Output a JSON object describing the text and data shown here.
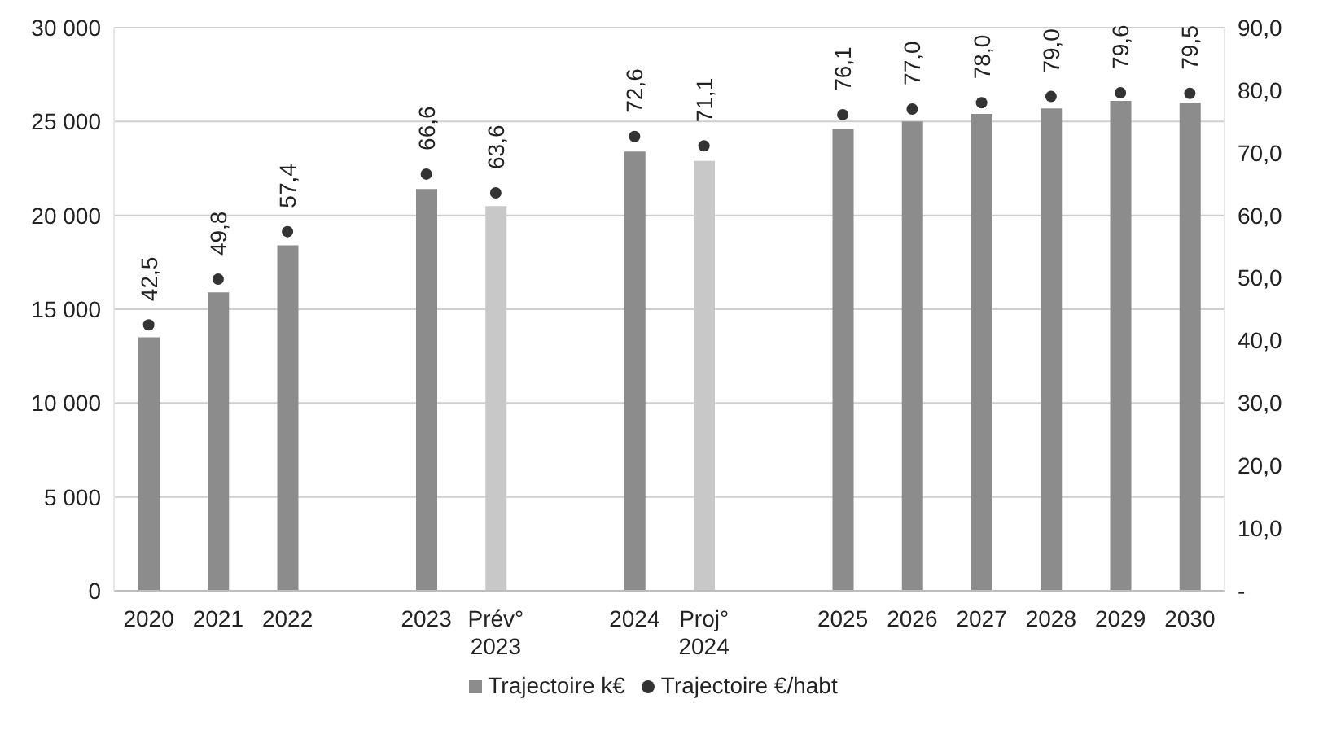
{
  "chart_data": {
    "type": "bar",
    "categories": [
      "2020",
      "2021",
      "2022",
      null,
      "2023",
      "Prév° 2023",
      null,
      "2024",
      "Proj° 2024",
      null,
      "2025",
      "2026",
      "2027",
      "2028",
      "2029",
      "2030"
    ],
    "series": [
      {
        "name": "Trajectoire k€",
        "color": "#8c8c8c",
        "colors": [
          "#8c8c8c",
          "#8c8c8c",
          "#8c8c8c",
          "#8c8c8c",
          "#8c8c8c",
          "#c8c8c8",
          "#8c8c8c",
          "#8c8c8c",
          "#c8c8c8",
          "#8c8c8c",
          "#8c8c8c",
          "#8c8c8c",
          "#8c8c8c",
          "#8c8c8c",
          "#8c8c8c",
          "#8c8c8c"
        ],
        "values": [
          13500,
          15900,
          18400,
          null,
          21400,
          20500,
          null,
          23400,
          22900,
          null,
          24600,
          25000,
          25400,
          25700,
          26100,
          26000
        ]
      },
      {
        "name": "Trajectoire €/habt",
        "type": "scatter",
        "axis": "y2",
        "color": "#333333",
        "values": [
          42.5,
          49.8,
          57.4,
          null,
          66.6,
          63.6,
          null,
          72.6,
          71.1,
          null,
          76.1,
          77.0,
          78.0,
          79.0,
          79.6,
          79.5
        ],
        "value_labels": [
          "42,5",
          "49,8",
          "57,4",
          null,
          "66,6",
          "63,6",
          null,
          "72,6",
          "71,1",
          null,
          "76,1",
          "77,0",
          "78,0",
          "79,0",
          "79,6",
          "79,5"
        ]
      }
    ],
    "ylim": [
      0,
      30000
    ],
    "yticks": [
      {
        "value": 0,
        "label": "0"
      },
      {
        "value": 5000,
        "label": "5 000"
      },
      {
        "value": 10000,
        "label": "10 000"
      },
      {
        "value": 15000,
        "label": "15 000"
      },
      {
        "value": 20000,
        "label": "20 000"
      },
      {
        "value": 25000,
        "label": "25 000"
      },
      {
        "value": 30000,
        "label": "30 000"
      }
    ],
    "y2lim": [
      0,
      90
    ],
    "y2ticks": [
      {
        "value": 0,
        "label": "-"
      },
      {
        "value": 10,
        "label": "10,0"
      },
      {
        "value": 20,
        "label": "20,0"
      },
      {
        "value": 30,
        "label": "30,0"
      },
      {
        "value": 40,
        "label": "40,0"
      },
      {
        "value": 50,
        "label": "50,0"
      },
      {
        "value": 60,
        "label": "60,0"
      },
      {
        "value": 70,
        "label": "70,0"
      },
      {
        "value": 80,
        "label": "80,0"
      },
      {
        "value": 90,
        "label": "90,0"
      }
    ],
    "grid": "y",
    "legend": "bottom",
    "marker": "circle"
  }
}
